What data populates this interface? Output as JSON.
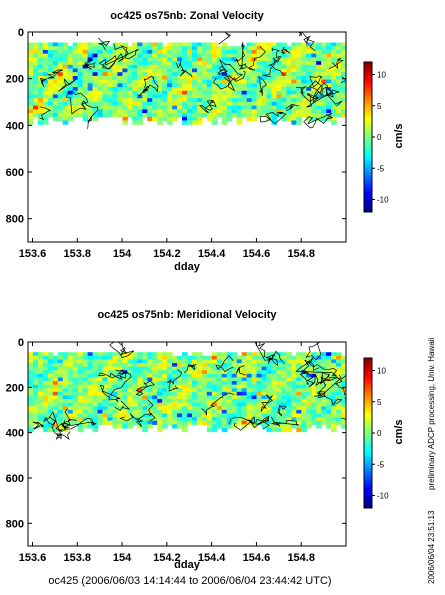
{
  "colors": {
    "colormap": [
      "#000080",
      "#0000ff",
      "#0080ff",
      "#00ffff",
      "#80ff80",
      "#ffff00",
      "#ff8000",
      "#ff0000",
      "#800000"
    ],
    "axes": "#000000",
    "contour": "#000000"
  },
  "chart_data": [
    {
      "type": "heatmap",
      "title": "oc425 os75nb: Zonal Velocity",
      "xlabel": "dday",
      "ylabel": "",
      "xlim": [
        153.58,
        155.0
      ],
      "ylim": [
        900,
        0
      ],
      "x_reversed": false,
      "y_reversed": true,
      "x_ticks": [
        "153.6",
        "153.8",
        "154",
        "154.2",
        "154.4",
        "154.6",
        "154.8"
      ],
      "x_tick_values": [
        153.6,
        153.8,
        154.0,
        154.2,
        154.4,
        154.6,
        154.8
      ],
      "y_ticks": [
        "0",
        "200",
        "400",
        "600",
        "800"
      ],
      "y_tick_values": [
        0,
        200,
        400,
        600,
        800
      ],
      "data_depth_range": [
        45,
        395
      ],
      "colorbar": {
        "label": "cm/s",
        "range": [
          -12,
          12
        ],
        "ticks": [
          "10",
          "5",
          "0",
          "-5",
          "-10"
        ],
        "tick_values": [
          10,
          5,
          0,
          -5,
          -10
        ]
      }
    },
    {
      "type": "heatmap",
      "title": "oc425 os75nb: Meridional Velocity",
      "xlabel": "dday",
      "ylabel": "",
      "xlim": [
        153.58,
        155.0
      ],
      "ylim": [
        900,
        0
      ],
      "y_reversed": true,
      "x_ticks": [
        "153.6",
        "153.8",
        "154",
        "154.2",
        "154.4",
        "154.6",
        "154.8"
      ],
      "x_tick_values": [
        153.6,
        153.8,
        154.0,
        154.2,
        154.4,
        154.6,
        154.8
      ],
      "y_ticks": [
        "0",
        "200",
        "400",
        "600",
        "800"
      ],
      "y_tick_values": [
        0,
        200,
        400,
        600,
        800
      ],
      "data_depth_range": [
        45,
        395
      ],
      "colorbar": {
        "label": "cm/s",
        "range": [
          -12,
          12
        ],
        "ticks": [
          "10",
          "5",
          "0",
          "-5",
          "-10"
        ],
        "tick_values": [
          10,
          5,
          0,
          -5,
          -10
        ]
      }
    }
  ],
  "footer": "oc425 (2006/06/03 14:14:44 to 2006/06/04 23:44:42 UTC)",
  "side_note": "preliminary ADCP processing,   Univ. Hawaii",
  "timestamp": "2006/06/04 23:51:13"
}
